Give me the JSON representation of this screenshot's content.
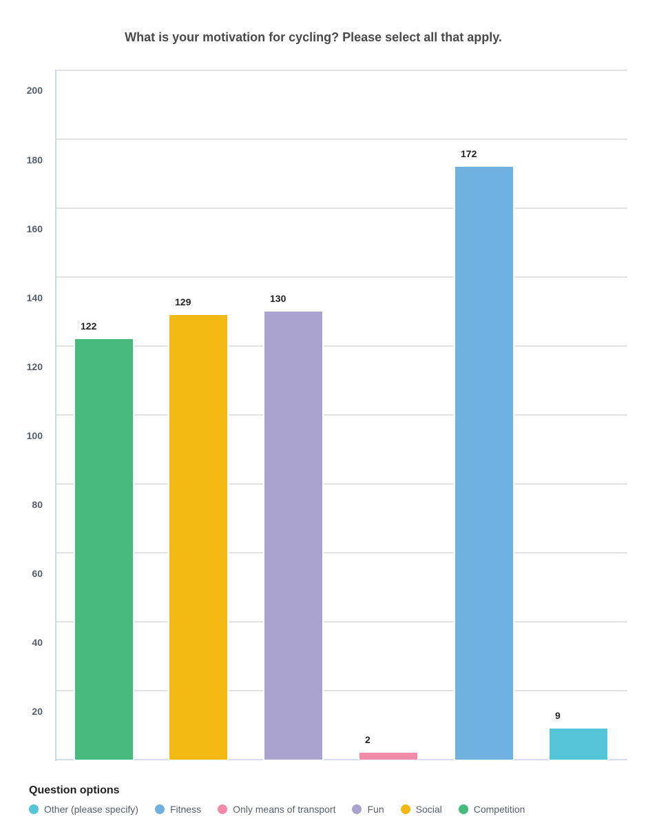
{
  "chart_data": {
    "type": "bar",
    "title": "What is your motivation for cycling? Please select all that apply.",
    "xlabel": "",
    "ylabel": "",
    "categories": [
      "Competition",
      "Social",
      "Fun",
      "Only means of transport",
      "Fitness",
      "Other (please specify)"
    ],
    "values": [
      122,
      129,
      130,
      2,
      172,
      9
    ],
    "colors": [
      "#46bb7c",
      "#f2b814",
      "#aaa3cf",
      "#f38bab",
      "#6fb1e1",
      "#54c4d9"
    ],
    "ylim": [
      0,
      200
    ],
    "yticks": [
      20,
      40,
      60,
      80,
      100,
      120,
      140,
      160,
      180,
      200
    ],
    "grid": true,
    "data_labels": true,
    "legend_position": "bottom-left"
  },
  "title": "What is your motivation for cycling? Please select all that apply.",
  "yticks": [
    "200",
    "180",
    "160",
    "140",
    "120",
    "100",
    "80",
    "60",
    "40",
    "20"
  ],
  "bars": [
    {
      "label": "122",
      "value": 122,
      "color": "#46bb7c",
      "name": "Competition"
    },
    {
      "label": "129",
      "value": 129,
      "color": "#f2b814",
      "name": "Social"
    },
    {
      "label": "130",
      "value": 130,
      "color": "#aaa3cf",
      "name": "Fun"
    },
    {
      "label": "2",
      "value": 2,
      "color": "#f38bab",
      "name": "Only means of transport"
    },
    {
      "label": "172",
      "value": 172,
      "color": "#6fb1e1",
      "name": "Fitness"
    },
    {
      "label": "9",
      "value": 9,
      "color": "#54c4d9",
      "name": "Other (please specify)"
    }
  ],
  "legend": {
    "title": "Question options",
    "items": [
      {
        "label": "Other (please specify)",
        "color": "#54c4d9"
      },
      {
        "label": "Fitness",
        "color": "#6fb1e1"
      },
      {
        "label": "Only means of transport",
        "color": "#f38bab"
      },
      {
        "label": "Fun",
        "color": "#aaa3cf"
      },
      {
        "label": "Social",
        "color": "#f2b814"
      },
      {
        "label": "Competition",
        "color": "#46bb7c"
      }
    ]
  }
}
